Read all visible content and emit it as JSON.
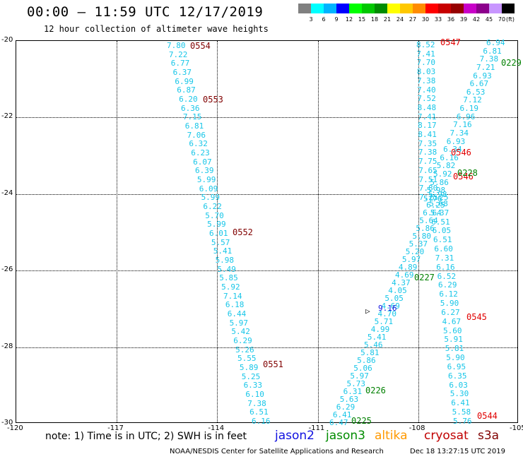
{
  "header": {
    "title": "00:00 — 11:59 UTC 12/17/2019",
    "subtitle": "12 hour collection of altimeter wave heights"
  },
  "legend": {
    "colors": [
      "#808080",
      "#00ffff",
      "#00b4ff",
      "#0000ff",
      "#00ff00",
      "#00c800",
      "#008c00",
      "#ffff00",
      "#ffc800",
      "#ff8c00",
      "#ff0000",
      "#c80000",
      "#960000",
      "#c800c8",
      "#8c008c",
      "#c896ff",
      "#000000"
    ],
    "ticks": [
      "3",
      "6",
      "9",
      "12",
      "15",
      "18",
      "21",
      "24",
      "27",
      "30",
      "33",
      "36",
      "39",
      "42",
      "45",
      "70",
      "(ft)"
    ]
  },
  "axes": {
    "y_labels": [
      "-20",
      "-22",
      "-24",
      "-26",
      "-28",
      "-30"
    ],
    "x_labels": [
      "-120",
      "-117",
      "-114",
      "-111",
      "-108",
      "-105"
    ]
  },
  "tracks": {
    "left": [
      "7.80",
      "7.22",
      "6.77",
      "6.37",
      "6.99",
      "6.87",
      "6.20",
      "6.36",
      "7.15",
      "6.81",
      "7.06",
      "6.32",
      "6.23",
      "6.07",
      "6.39",
      "5.99",
      "6.09",
      "5.99",
      "6.22",
      "5.70",
      "5.99",
      "6.01",
      "5.57",
      "5.41",
      "5.98",
      "5.49",
      "5.85",
      "5.92",
      "7.14",
      "6.18",
      "6.44",
      "5.97",
      "5.42",
      "6.29",
      "5.26",
      "5.55",
      "5.89",
      "5.25",
      "6.33",
      "6.10",
      "7.38",
      "6.51",
      "6.16"
    ],
    "middle_top": [
      "8.52",
      "7.41",
      "7.70",
      "8.03",
      "7.38",
      "7.40",
      "7.52",
      "8.48",
      "7.41",
      "8.17",
      "8.41",
      "7.35",
      "7.38",
      "7.75",
      "7.65",
      "7.51",
      "7.80",
      "7.25"
    ],
    "right_top": [
      "6.94",
      "6.81",
      "7.38",
      "7.21",
      "6.93",
      "6.67",
      "6.53",
      "7.12",
      "6.19",
      "6.96",
      "7.16",
      "7.34",
      "6.93",
      "6.34",
      "6.16",
      "5.82",
      "5.92",
      "5.86",
      "5.98",
      "5.76"
    ],
    "descending_lower": [
      "5.98",
      "5.68",
      "5.37",
      "6.51",
      "6.05",
      "6.51",
      "6.60",
      "7.31",
      "6.16",
      "6.52",
      "6.29",
      "6.12",
      "5.90",
      "6.27",
      "4.67",
      "5.60",
      "5.91",
      "5.81",
      "5.90",
      "6.95",
      "6.35",
      "6.03",
      "5.30",
      "6.41",
      "5.58",
      "5.76"
    ],
    "ascending_lower": [
      "6.47",
      "6.41",
      "6.29",
      "5.63",
      "6.31",
      "5.73",
      "5.97",
      "5.06",
      "5.86",
      "5.81",
      "5.46",
      "5.41",
      "4.99",
      "5.71",
      "4.70",
      "4.69",
      "5.05",
      "4.05",
      "4.37",
      "4.69",
      "4.89",
      "5.97",
      "5.20",
      "5.37",
      "5.80",
      "5.86",
      "5.64",
      "6.64",
      "6.25",
      "6.25"
    ],
    "jason2_point": "9.16"
  },
  "passes": [
    {
      "label": "0554",
      "sat": "cryosat"
    },
    {
      "label": "0553",
      "sat": "cryosat"
    },
    {
      "label": "0552",
      "sat": "cryosat"
    },
    {
      "label": "0551",
      "sat": "cryosat"
    },
    {
      "label": "0547",
      "sat": "s3a"
    },
    {
      "label": "0546",
      "sat": "s3a"
    },
    {
      "label": "0546",
      "sat": "s3a"
    },
    {
      "label": "0545",
      "sat": "s3a"
    },
    {
      "label": "0544",
      "sat": "s3a"
    },
    {
      "label": "0229",
      "sat": "jason3"
    },
    {
      "label": "0228",
      "sat": "jason3"
    },
    {
      "label": "0227",
      "sat": "jason3"
    },
    {
      "label": "0226",
      "sat": "jason3"
    },
    {
      "label": "0225",
      "sat": "jason3"
    }
  ],
  "pass_colors": {
    "cryosat": "#800000",
    "s3a": "#e00000",
    "jason3": "#008000"
  },
  "footer": {
    "note": "note: 1) Time is in UTC; 2) SWH is in feet",
    "satellites": [
      {
        "name": "jason2",
        "color": "#1010e0"
      },
      {
        "name": "jason3",
        "color": "#008c00"
      },
      {
        "name": "altika",
        "color": "#ff9900"
      },
      {
        "name": "cryosat",
        "color": "#c00000"
      },
      {
        "name": "s3a",
        "color": "#800000"
      }
    ],
    "credit": "NOAA/NESDIS Center for Satellite Applications and Research",
    "timestamp": "Dec 18 13:27:15 UTC 2019"
  }
}
